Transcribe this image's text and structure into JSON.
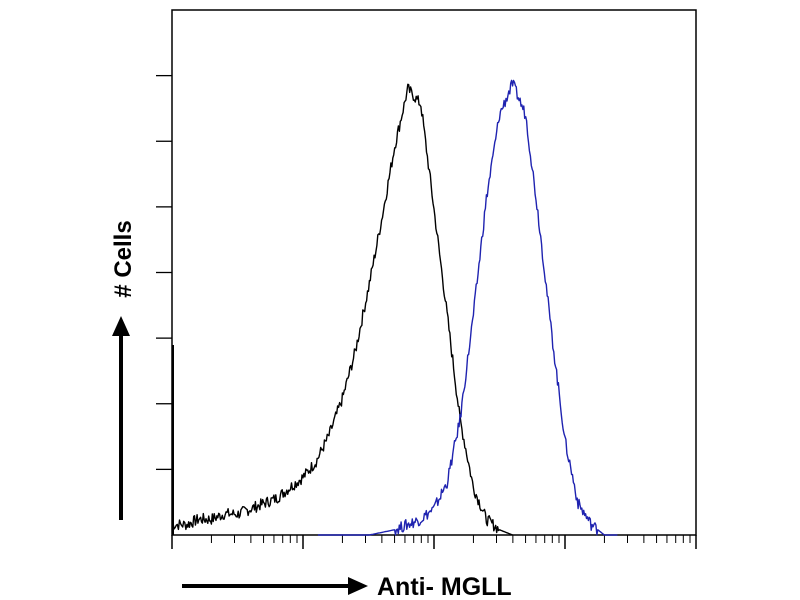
{
  "chart_data": {
    "type": "area",
    "title": "",
    "xlabel": "Anti- MGLL",
    "ylabel": "# Cells",
    "x_scale": "log",
    "xlim": [
      1,
      10000
    ],
    "ylim": [
      0,
      100
    ],
    "grid": false,
    "legend": "none",
    "series": [
      {
        "color": "#000000",
        "x": [
          1.0,
          1.3,
          1.6,
          2.0,
          2.5,
          3.2,
          4.0,
          5.0,
          6.3,
          7.9,
          10.0,
          12.6,
          15.8,
          20.0,
          25.1,
          31.6,
          39.8,
          50.1,
          63.1,
          79.4,
          100,
          126,
          158,
          200,
          251,
          316,
          398
        ],
        "y": [
          2,
          2,
          3,
          3,
          4,
          4,
          5,
          6,
          7,
          9,
          11,
          14,
          19,
          26,
          35,
          47,
          60,
          74,
          85,
          82,
          62,
          42,
          22,
          9,
          3,
          1,
          0
        ]
      },
      {
        "color": "#1f23b0",
        "x": [
          13,
          20,
          32,
          50,
          63,
          79,
          100,
          126,
          158,
          200,
          251,
          316,
          398,
          501,
          631,
          794,
          1000,
          1259,
          1585,
          2000,
          2512
        ],
        "y": [
          0,
          0,
          0,
          1,
          2,
          3,
          5,
          10,
          22,
          42,
          64,
          80,
          86,
          80,
          60,
          38,
          18,
          6,
          2,
          0,
          0
        ]
      }
    ]
  }
}
